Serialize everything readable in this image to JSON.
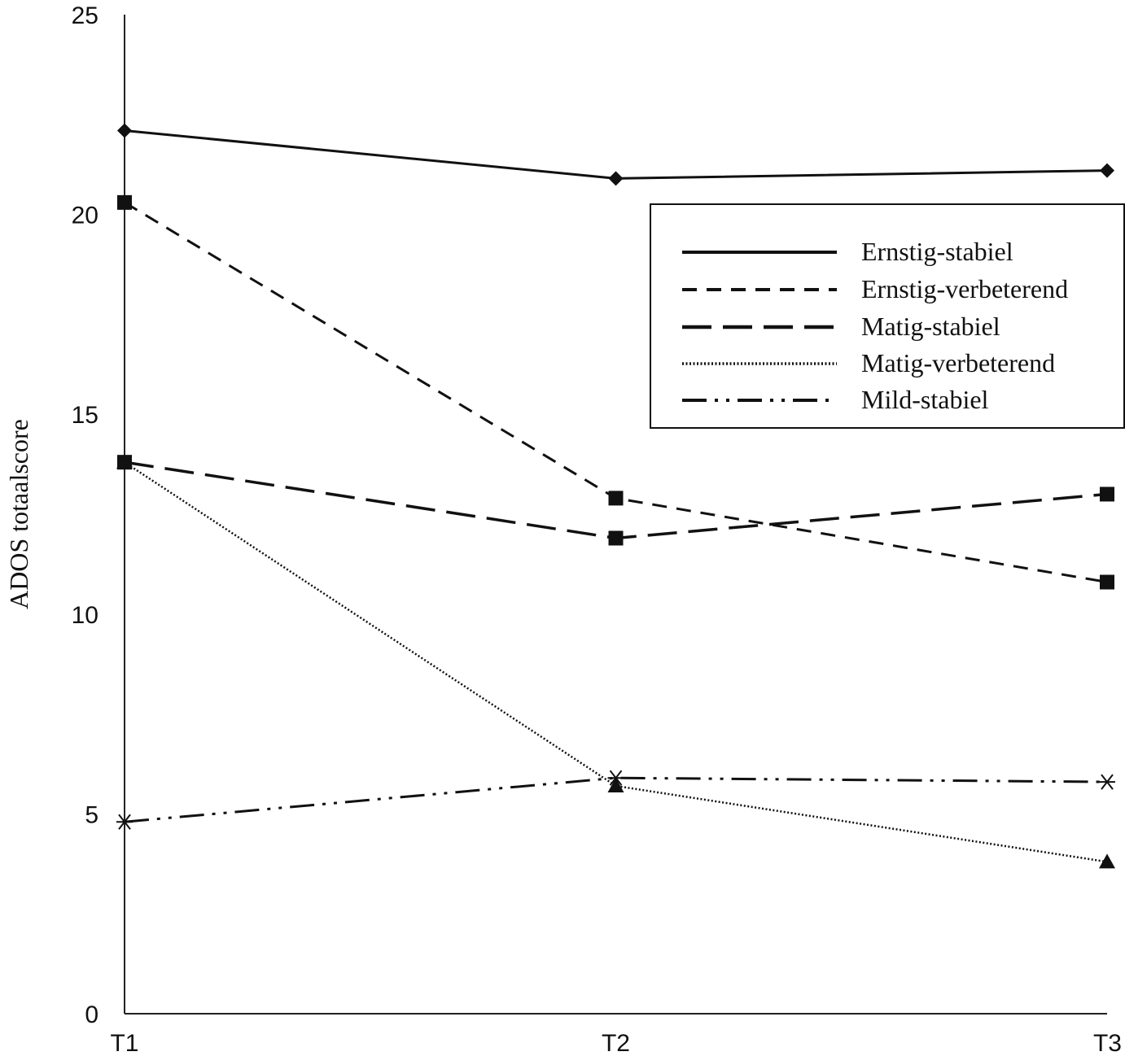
{
  "chart_data": {
    "type": "line",
    "title": "",
    "xlabel": "",
    "ylabel": "ADOS totaalscore",
    "categories": [
      "T1",
      "T2",
      "T3"
    ],
    "ylim": [
      0,
      25
    ],
    "yticks": [
      "0",
      "5",
      "10",
      "15",
      "20",
      "25"
    ],
    "grid": false,
    "legend_position": "top-right",
    "series": [
      {
        "name": "Ernstig-stabiel",
        "values": [
          22.1,
          20.9,
          21.1
        ],
        "line_style": "solid",
        "marker": "diamond"
      },
      {
        "name": "Ernstig-verbeterend",
        "values": [
          20.3,
          12.9,
          10.8
        ],
        "line_style": "short-dash",
        "marker": "square"
      },
      {
        "name": "Matig-stabiel",
        "values": [
          13.8,
          11.9,
          13.0
        ],
        "line_style": "long-dash",
        "marker": "square"
      },
      {
        "name": "Matig-verbeterend",
        "values": [
          13.8,
          5.7,
          3.8
        ],
        "line_style": "dotted",
        "marker": "triangle"
      },
      {
        "name": "Mild-stabiel",
        "values": [
          4.8,
          5.9,
          5.8
        ],
        "line_style": "dash-dot-dot",
        "marker": "asterisk"
      }
    ]
  }
}
